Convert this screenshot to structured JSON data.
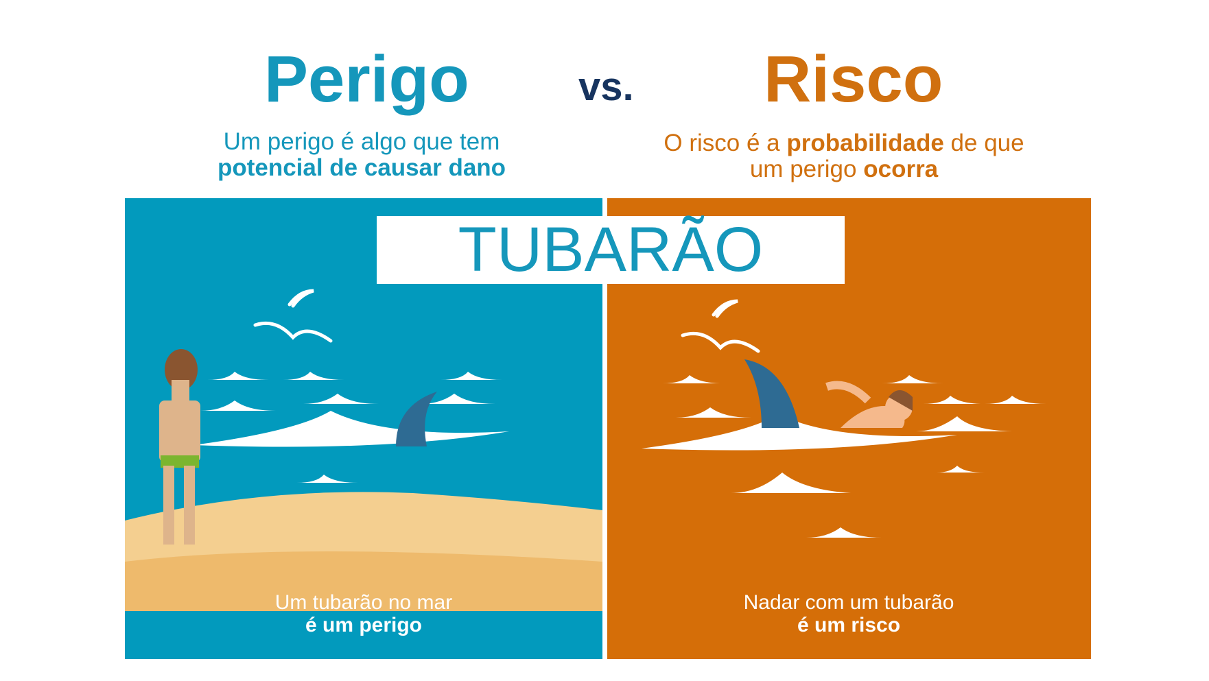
{
  "header": {
    "left_title": "Perigo",
    "vs": "vs.",
    "right_title": "Risco",
    "left_sub_line1": "Um perigo é algo que tem",
    "left_sub_line2": "potencial de causar dano",
    "right_sub_a": "O risco é a ",
    "right_sub_b": "probabilidade",
    "right_sub_c": " de que",
    "right_sub_d": "um perigo ",
    "right_sub_e": "ocorra"
  },
  "center_label": "TUBARÃO",
  "left_panel": {
    "caption_line1": "Um tubarão no mar",
    "caption_line2": "é um perigo"
  },
  "right_panel": {
    "caption_line1": "Nadar com um tubarão",
    "caption_line2": "é um risco"
  },
  "colors": {
    "blue": "#029abd",
    "orange": "#d56e08",
    "navy": "#17345f",
    "sand": "#f0c98a",
    "fin": "#2e6b93"
  }
}
